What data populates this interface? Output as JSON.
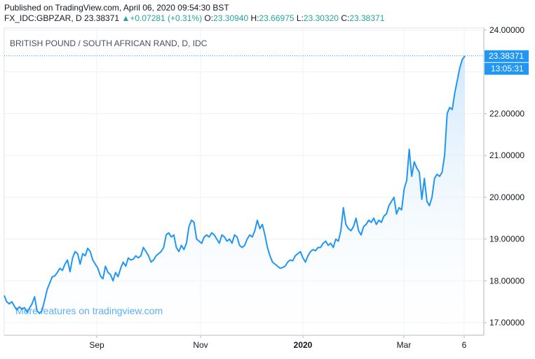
{
  "header": {
    "published": "Published on TradingView.com, April 06, 2020 09:54:30 BST",
    "symbol": "FX_IDC:GBPZAR, D",
    "last": "23.38371",
    "change_arrow": "▲",
    "change": "+0.07281 (+0.31%)",
    "open_label": "O:",
    "open": "23.30940",
    "high_label": "H:",
    "high": "23.66975",
    "low_label": "L:",
    "low": "23.30320",
    "close_label": "C:",
    "close": "23.38371"
  },
  "watermark": "More features on tradingview.com",
  "last_price_badge": "23.38371",
  "countdown_badge": "13:05:31",
  "colors": {
    "line": "#2196f3",
    "fill_top": "#cde6fb",
    "fill_bottom": "#ffffff",
    "badge": "#2196f3",
    "grid": "#eef0f3",
    "axis_text": "#131722",
    "up": "#26a69a"
  },
  "chart_data": {
    "type": "area",
    "title": "BRITISH POUND / SOUTH AFRICAN RAND, D, IDC",
    "xlabel": "",
    "ylabel": "",
    "x_tick_labels": [
      "Sep",
      "Nov",
      "2020",
      "Mar",
      "6"
    ],
    "y_tick_labels": [
      "17.00000",
      "18.00000",
      "19.00000",
      "20.00000",
      "21.00000",
      "22.00000",
      "23.00000",
      "24.00000"
    ],
    "ylim": [
      16.7,
      24.05
    ],
    "grid": true,
    "series": [
      {
        "values": [
          17.65,
          17.5,
          17.45,
          17.5,
          17.4,
          17.3,
          17.38,
          17.32,
          17.36,
          17.25,
          17.35,
          17.45,
          17.62,
          17.28,
          17.22,
          17.3,
          17.55,
          17.8,
          17.95,
          18.1,
          18.12,
          18.2,
          18.3,
          18.25,
          18.4,
          18.5,
          18.22,
          18.55,
          18.7,
          18.65,
          18.4,
          18.65,
          18.6,
          18.78,
          18.7,
          18.5,
          18.4,
          18.3,
          18.12,
          18.05,
          18.35,
          18.2,
          18.15,
          18.0,
          18.2,
          18.1,
          18.3,
          18.45,
          18.35,
          18.55,
          18.5,
          18.52,
          18.6,
          18.55,
          18.6,
          18.8,
          18.7,
          18.6,
          18.45,
          18.5,
          18.6,
          18.65,
          18.7,
          18.8,
          19.1,
          19.15,
          19.05,
          19.1,
          18.8,
          18.7,
          18.85,
          18.75,
          18.9,
          19.3,
          19.45,
          19.4,
          19.0,
          18.95,
          18.9,
          19.05,
          19.1,
          19.05,
          19.15,
          19.1,
          19.0,
          18.9,
          19.1,
          19.05,
          18.95,
          19.0,
          18.9,
          19.1,
          19.05,
          18.85,
          18.8,
          18.85,
          19.0,
          19.1,
          19.05,
          19.2,
          19.45,
          19.25,
          19.35,
          19.1,
          18.8,
          18.6,
          18.45,
          18.4,
          18.35,
          18.3,
          18.32,
          18.35,
          18.45,
          18.5,
          18.48,
          18.6,
          18.65,
          18.7,
          18.55,
          18.45,
          18.6,
          18.7,
          18.75,
          18.72,
          18.8,
          18.8,
          18.9,
          18.95,
          18.85,
          18.9,
          18.8,
          19.0,
          18.95,
          19.2,
          19.75,
          19.35,
          19.25,
          19.2,
          19.3,
          19.5,
          19.2,
          19.1,
          19.3,
          19.35,
          19.45,
          19.4,
          19.5,
          19.35,
          19.45,
          19.4,
          19.55,
          19.6,
          19.8,
          19.9,
          20.0,
          19.6,
          19.75,
          19.7,
          20.2,
          20.4,
          21.15,
          20.5,
          20.85,
          20.7,
          20.6,
          19.95,
          20.45,
          19.9,
          19.8,
          20.0,
          20.45,
          20.55,
          20.5,
          20.6,
          21.0,
          22.0,
          22.15,
          22.1,
          22.5,
          22.8,
          23.1,
          23.3,
          23.38
        ]
      }
    ]
  }
}
